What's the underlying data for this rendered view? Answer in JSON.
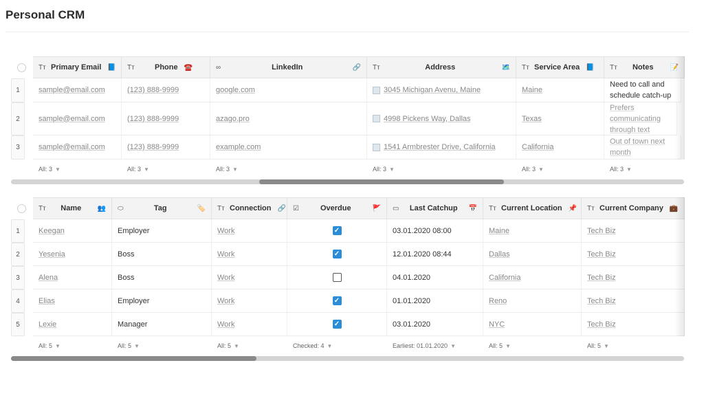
{
  "page": {
    "title": "Personal CRM"
  },
  "contacts_table": {
    "columns": [
      {
        "label": "Primary Email",
        "type_icon": "Tт",
        "emoji": "📘"
      },
      {
        "label": "Phone",
        "type_icon": "Tт",
        "emoji": "☎️"
      },
      {
        "label": "LinkedIn",
        "type_icon": "∞",
        "emoji": "🔗"
      },
      {
        "label": "Address",
        "type_icon": "Tт",
        "emoji": "🗺️"
      },
      {
        "label": "Service Area",
        "type_icon": "Tт",
        "emoji": "📘"
      },
      {
        "label": "Notes",
        "type_icon": "Tт",
        "emoji": "📝"
      }
    ],
    "rows": [
      {
        "num": "1",
        "email": "sample@email.com",
        "phone": "(123) 888-9999",
        "linkedin": "google.com",
        "address": "3045 Michigan Avenu, Maine",
        "service_area": "Maine",
        "notes": "Need to call and schedule catch-up"
      },
      {
        "num": "2",
        "email": "sample@email.com",
        "phone": "(123) 888-9999",
        "linkedin": "azago.pro",
        "address": "4998 Pickens Way, Dallas",
        "service_area": "Texas",
        "notes": "Prefers communicating through text"
      },
      {
        "num": "3",
        "email": "sample@email.com",
        "phone": "(123) 888-9999",
        "linkedin": "example.com",
        "address": "1541 Armbrester Drive, California",
        "service_area": "California",
        "notes": "Out of town next month"
      }
    ],
    "footer": [
      "All: 3",
      "All: 3",
      "All: 3",
      "All: 3",
      "All: 3",
      "All: 3"
    ],
    "scroll_position": 0.58
  },
  "people_table": {
    "columns": [
      {
        "label": "Name",
        "type_icon": "Tт",
        "emoji": "👥"
      },
      {
        "label": "Tag",
        "type_icon": "⬭",
        "emoji": "🏷️"
      },
      {
        "label": "Connection",
        "type_icon": "Tт",
        "emoji": "🔗"
      },
      {
        "label": "Overdue",
        "type_icon": "☑",
        "emoji": "🚩"
      },
      {
        "label": "Last Catchup",
        "type_icon": "▭",
        "emoji": "📅"
      },
      {
        "label": "Current Location",
        "type_icon": "Tт",
        "emoji": "📌"
      },
      {
        "label": "Current Company",
        "type_icon": "Tт",
        "emoji": "💼"
      }
    ],
    "rows": [
      {
        "num": "1",
        "name": "Keegan",
        "tag": "Employer",
        "connection": "Work",
        "overdue": true,
        "last_catchup": "03.01.2020 08:00",
        "location": "Maine",
        "company": "Tech Biz"
      },
      {
        "num": "2",
        "name": "Yesenia",
        "tag": "Boss",
        "connection": "Work",
        "overdue": true,
        "last_catchup": "12.01.2020 08:44",
        "location": "Dallas",
        "company": "Tech Biz"
      },
      {
        "num": "3",
        "name": "Alena",
        "tag": "Boss",
        "connection": "Work",
        "overdue": false,
        "last_catchup": "04.01.2020",
        "location": "California",
        "company": "Tech Biz"
      },
      {
        "num": "4",
        "name": "Elias",
        "tag": "Employer",
        "connection": "Work",
        "overdue": true,
        "last_catchup": "01.01.2020",
        "location": "Reno",
        "company": "Tech Biz"
      },
      {
        "num": "5",
        "name": "Lexie",
        "tag": "Manager",
        "connection": "Work",
        "overdue": true,
        "last_catchup": "03.01.2020",
        "location": "NYC",
        "company": "Tech Biz"
      }
    ],
    "footer": [
      "All: 5",
      "All: 5",
      "All: 5",
      "Checked: 4",
      "Earliest: 01.01.2020",
      "All: 5",
      "All: 5"
    ],
    "scroll_position": 0.0
  },
  "colors": {
    "accent": "#2b8cd8",
    "scroll_thumb": "#8a8a8a",
    "scroll_track": "#d4d4d4"
  }
}
